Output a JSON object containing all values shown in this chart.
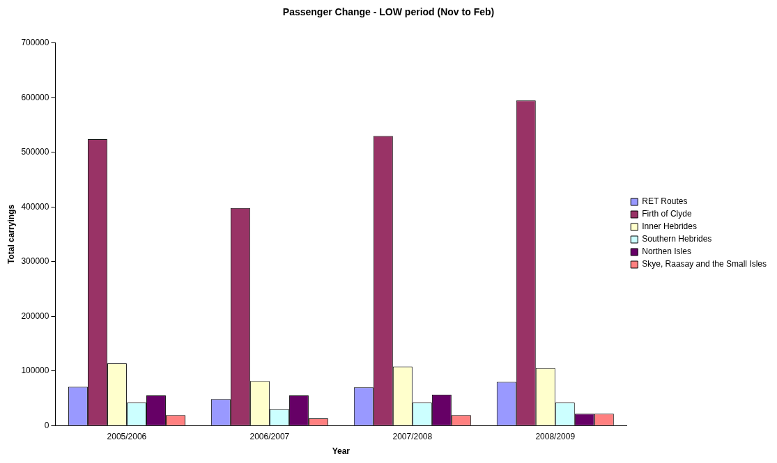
{
  "chart_data": {
    "type": "bar",
    "title": "Passenger Change - LOW period (Nov to Feb)",
    "xlabel": "Year",
    "ylabel": "Total carryings",
    "categories": [
      "2005/2006",
      "2006/2007",
      "2007/2008",
      "2008/2009"
    ],
    "series": [
      {
        "name": "RET Routes",
        "color": "#9999ff",
        "values": [
          71000,
          48500,
          70000,
          80000
        ]
      },
      {
        "name": "Firth of Clyde",
        "color": "#993366",
        "values": [
          524000,
          398000,
          530000,
          595000
        ]
      },
      {
        "name": "Inner Hebrides",
        "color": "#ffffcc",
        "values": [
          113500,
          81500,
          108000,
          105000
        ]
      },
      {
        "name": "Southern Hebrides",
        "color": "#ccffff",
        "values": [
          42000,
          30000,
          42000,
          42000
        ]
      },
      {
        "name": "Northen Isles",
        "color": "#660066",
        "values": [
          55000,
          55000,
          56500,
          21500
        ]
      },
      {
        "name": "Skye, Raasay and the Small Isles",
        "color": "#ff8080",
        "values": [
          19000,
          13000,
          19000,
          21500
        ]
      }
    ],
    "ylim": [
      0,
      700000
    ],
    "yticks": [
      0,
      100000,
      200000,
      300000,
      400000,
      500000,
      600000,
      700000
    ],
    "grid": false,
    "legend": "right"
  }
}
